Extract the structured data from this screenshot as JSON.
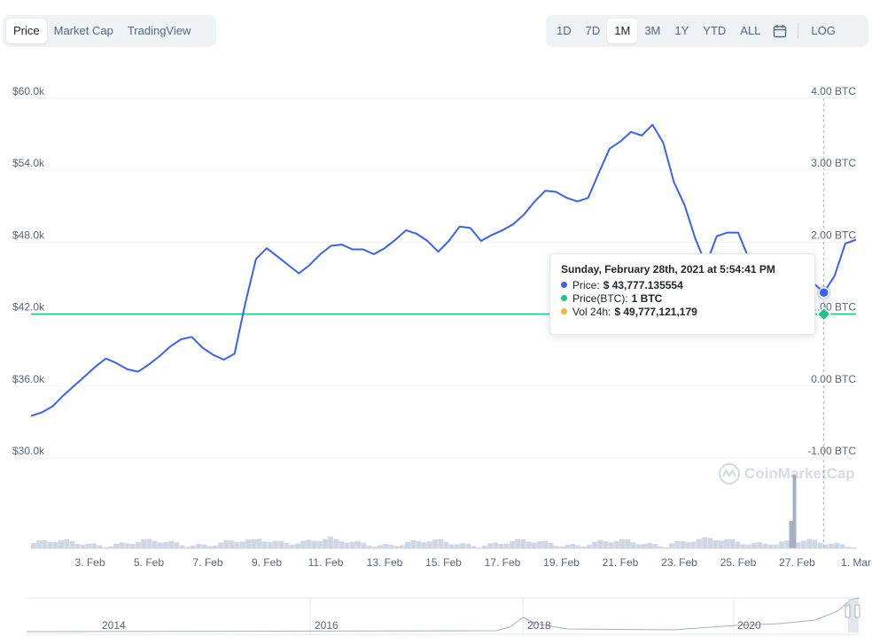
{
  "tabs": {
    "left": [
      "Price",
      "Market Cap",
      "TradingView"
    ],
    "right": [
      "1D",
      "7D",
      "1M",
      "3M",
      "1Y",
      "YTD",
      "ALL"
    ]
  },
  "active_left": "Price",
  "active_right": "1M",
  "log_label": "LOG",
  "tooltip": {
    "title": "Sunday, February 28th, 2021 at 5:54:41 PM",
    "rows": [
      {
        "label": "Price:",
        "value": "$ 43,777.135554",
        "color": "#3861fb"
      },
      {
        "label": "Price(BTC):",
        "value": "1 BTC",
        "color": "#16c784"
      },
      {
        "label": "Vol 24h:",
        "value": "$ 49,777,121,179",
        "color": "#f3ba2f"
      }
    ]
  },
  "watermark": "CoinMarketCap",
  "colors": {
    "price_line": "#3861fb",
    "btc_line": "#16c784",
    "grid": "#eff2f5",
    "volume": "#cfd6e4",
    "spike": "#a6b0c3"
  },
  "chart_data": {
    "type": "line",
    "x_unit": "date",
    "x_range": [
      "2021-02-01",
      "2021-03-01"
    ],
    "x_ticks": [
      "3. Feb",
      "5. Feb",
      "7. Feb",
      "9. Feb",
      "11. Feb",
      "13. Feb",
      "15. Feb",
      "17. Feb",
      "19. Feb",
      "21. Feb",
      "23. Feb",
      "25. Feb",
      "27. Feb",
      "1. Mar"
    ],
    "y_left": {
      "ticks": [
        "$60.0k",
        "$54.0k",
        "$48.0k",
        "$42.0k",
        "$36.0k",
        "$30.0k"
      ],
      "range": [
        30000,
        60000
      ]
    },
    "y_right": {
      "ticks": [
        "4.00 BTC",
        "3.00 BTC",
        "2.00 BTC",
        "1.00 BTC",
        "0.00 BTC",
        "-1.00 BTC"
      ],
      "range": [
        -1,
        4
      ]
    },
    "series": [
      {
        "name": "Price",
        "axis": "left",
        "values": [
          33500,
          33800,
          34300,
          35200,
          36000,
          36800,
          37600,
          38300,
          37900,
          37400,
          37200,
          37800,
          38500,
          39300,
          39900,
          40100,
          39200,
          38600,
          38200,
          38700,
          42900,
          46600,
          47500,
          46800,
          46100,
          45400,
          46100,
          47000,
          47700,
          47800,
          47400,
          47400,
          47000,
          47500,
          48200,
          49000,
          48700,
          48100,
          47200,
          48100,
          49300,
          49200,
          48100,
          48600,
          49000,
          49500,
          50300,
          51400,
          52300,
          52200,
          51700,
          51400,
          51700,
          53800,
          55800,
          56400,
          57200,
          56900,
          57800,
          56300,
          53000,
          51100,
          48300,
          46100,
          48500,
          48800,
          48800,
          46600,
          46400,
          46800,
          46300,
          45200,
          45300,
          44600,
          43800,
          45200,
          47900,
          48200
        ]
      },
      {
        "name": "Price(BTC)",
        "axis": "right",
        "values": [
          1,
          1
        ]
      },
      {
        "name": "Vol 24h",
        "axis": "volume"
      }
    ],
    "volume_spike_date": "2021-02-27",
    "navigator": {
      "x_labels": [
        "2014",
        "2016",
        "2018",
        "2020"
      ]
    }
  }
}
